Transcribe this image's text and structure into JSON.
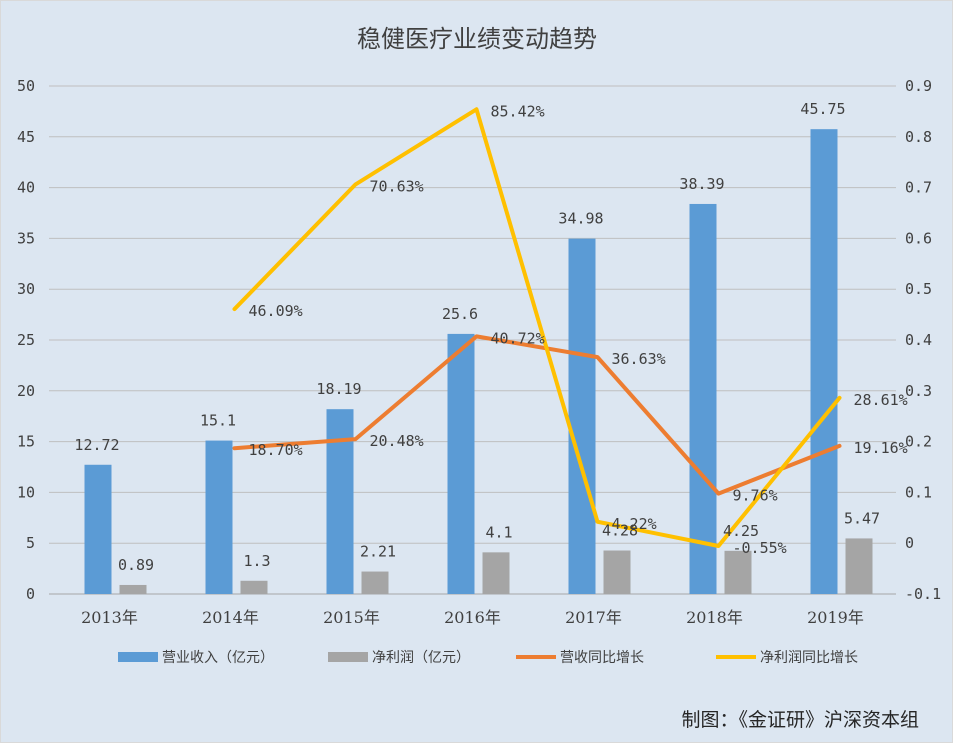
{
  "chart_data": {
    "type": "bar",
    "title": "稳健医疗业绩变动趋势",
    "categories": [
      "2013年",
      "2014年",
      "2015年",
      "2016年",
      "2017年",
      "2018年",
      "2019年"
    ],
    "left_axis": {
      "ylim": [
        0,
        50
      ],
      "ticks": [
        "0",
        "5",
        "10",
        "15",
        "20",
        "25",
        "30",
        "35",
        "40",
        "45",
        "50"
      ]
    },
    "right_axis": {
      "ylim": [
        -0.1,
        0.9
      ],
      "ticks": [
        "-0.1",
        "0",
        "0.1",
        "0.2",
        "0.3",
        "0.4",
        "0.5",
        "0.6",
        "0.7",
        "0.8",
        "0.9"
      ]
    },
    "grid": true,
    "legend_position": "bottom",
    "series": [
      {
        "name": "营业收入（亿元）",
        "type": "bar",
        "axis": "left",
        "color": "#5b9bd5",
        "values": [
          12.72,
          15.1,
          18.19,
          25.6,
          34.98,
          38.39,
          45.75
        ],
        "labels": [
          "12.72",
          "15.1",
          "18.19",
          "25.6",
          "34.98",
          "38.39",
          "45.75"
        ]
      },
      {
        "name": "净利润（亿元）",
        "type": "bar",
        "axis": "left",
        "color": "#a5a5a5",
        "values": [
          0.89,
          1.3,
          2.21,
          4.1,
          4.28,
          4.25,
          5.47
        ],
        "labels": [
          "0.89",
          "1.3",
          "2.21",
          "4.1",
          "4.28",
          "4.25",
          "5.47"
        ]
      },
      {
        "name": "营收同比增长",
        "type": "line",
        "axis": "right",
        "color": "#ed7d31",
        "values": [
          null,
          0.187,
          0.2048,
          0.4072,
          0.3663,
          0.0976,
          0.1916
        ],
        "labels": [
          "",
          "18.70%",
          "20.48%",
          "40.72%",
          "36.63%",
          "9.76%",
          "19.16%"
        ]
      },
      {
        "name": "净利润同比增长",
        "type": "line",
        "axis": "right",
        "color": "#ffc000",
        "values": [
          null,
          0.4609,
          0.7063,
          0.8542,
          0.0422,
          -0.0055,
          0.2861
        ],
        "labels": [
          "",
          "46.09%",
          "70.63%",
          "85.42%",
          "4.22%",
          "-0.55%",
          "28.61%"
        ]
      }
    ]
  },
  "credit": "制图：《金证研》沪深资本组"
}
